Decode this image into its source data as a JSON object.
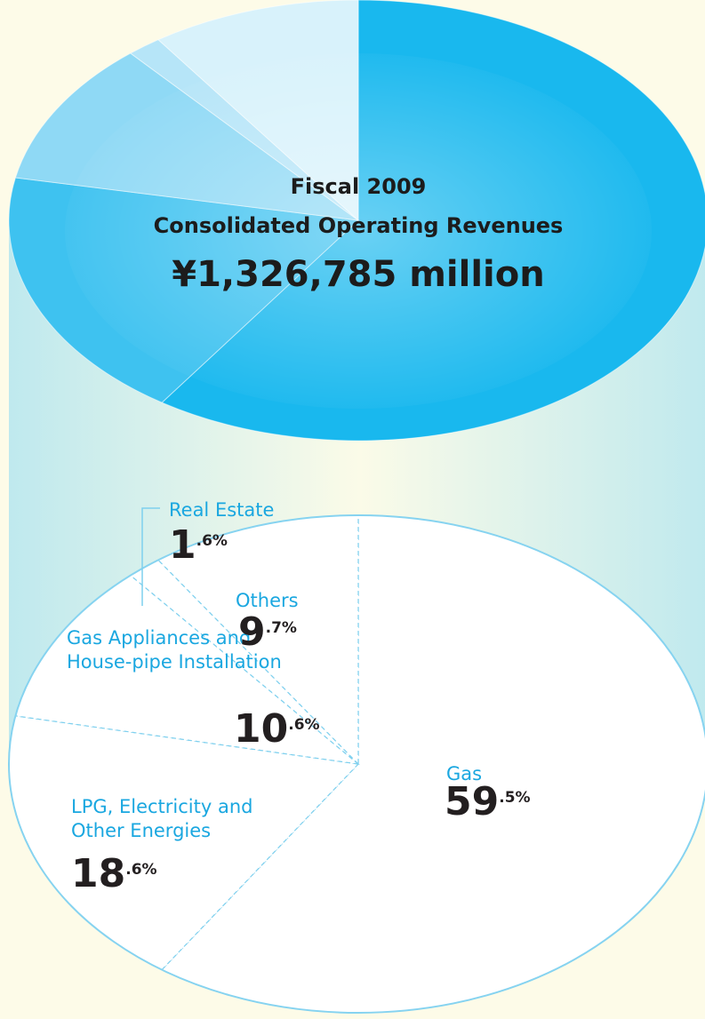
{
  "chart_data": {
    "type": "pie",
    "title": "Fiscal 2009",
    "subtitle": "Consolidated Operating Revenues",
    "total_label": "¥1,326,785 million",
    "categories": [
      "Gas",
      "LPG, Electricity and\nOther Energies",
      "Gas Appliances and\nHouse-pipe Installation",
      "Real Estate",
      "Others"
    ],
    "values": [
      59.5,
      18.6,
      10.6,
      1.6,
      9.7
    ],
    "value_labels": [
      "59.5%",
      "18.6%",
      "10.6%",
      "1.6%",
      "9.7%"
    ],
    "colors": [
      "#19b8ee",
      "#3ec2f0",
      "#8fd9f5",
      "#b6e5f8",
      "#d8f2fb"
    ]
  }
}
